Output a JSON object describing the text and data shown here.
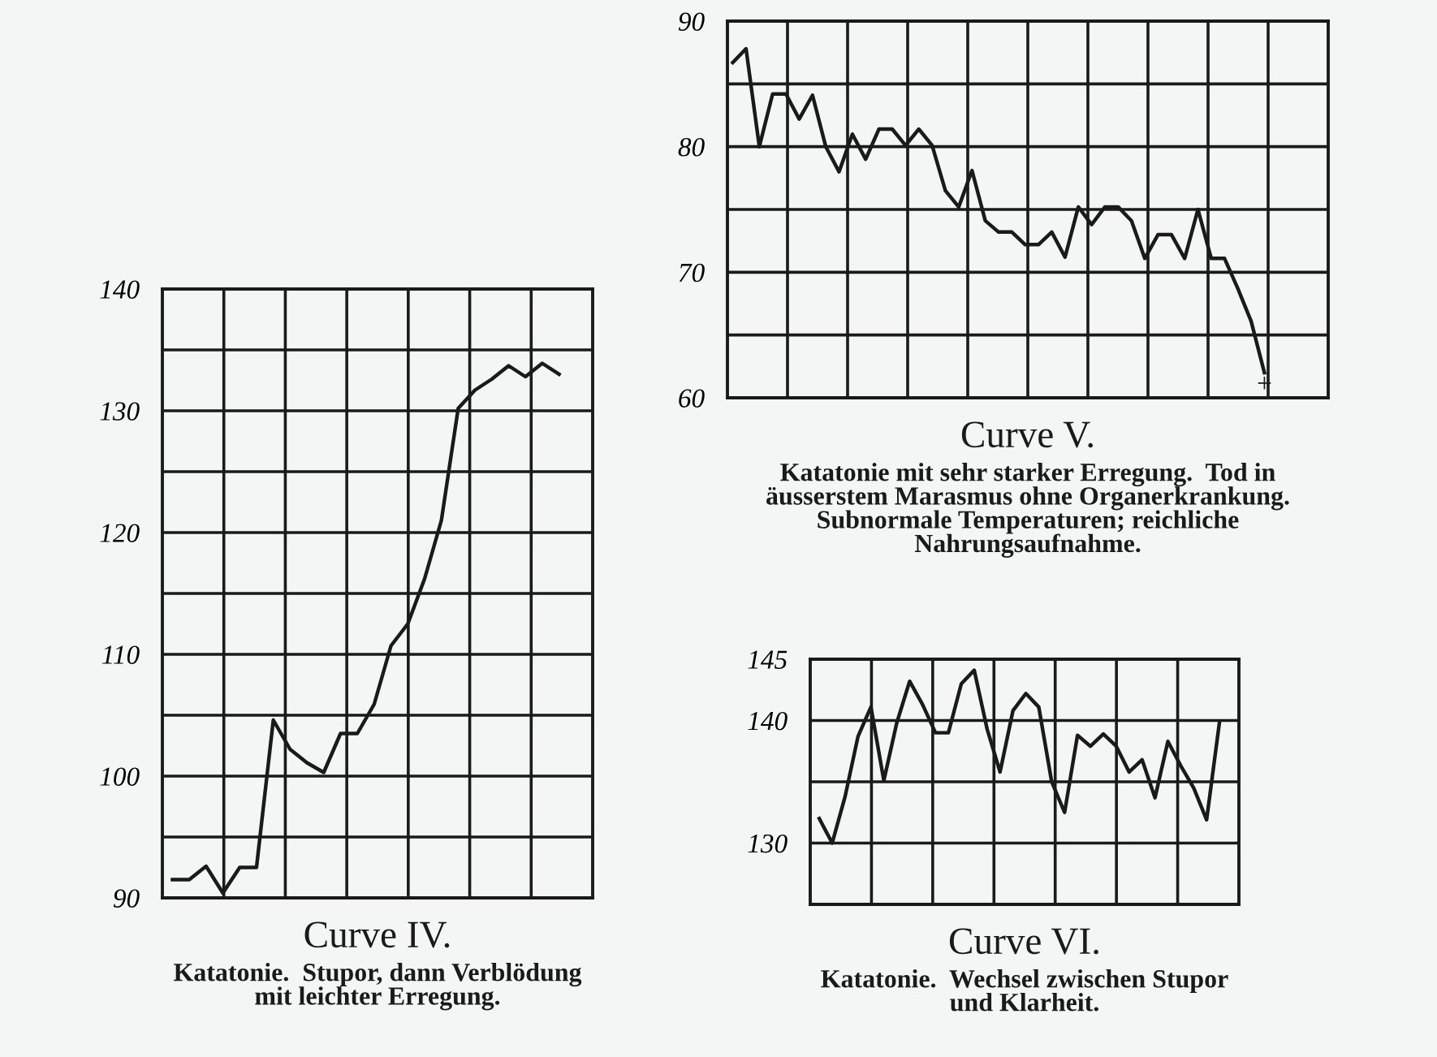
{
  "chart_data": [
    {
      "type": "line",
      "title": "Curve IV.",
      "subtitle": "Katatonie.  Stupor, dann Verblödung\nmit leichter Erregung.",
      "categories": [
        null,
        null,
        null,
        null,
        null,
        null,
        null,
        null,
        null,
        null,
        null,
        null,
        null,
        null,
        null,
        null,
        null,
        null,
        null,
        null,
        null,
        null,
        null,
        null
      ],
      "ylim": [
        90,
        140
      ],
      "yticks": [
        90,
        {
          "value": 95,
          "label": null
        },
        100,
        {
          "value": 105,
          "label": null
        },
        110,
        {
          "value": 115,
          "label": null
        },
        120,
        {
          "value": 125,
          "label": null
        },
        130,
        {
          "value": 135,
          "label": null
        },
        140
      ],
      "tick_labels": "y",
      "grid": true,
      "marker": "none",
      "line_style": "solid",
      "series": [
        {
          "color": "#1a1a1a",
          "values": [
            91.5,
            91.5,
            92.6,
            90.4,
            92.5,
            92.5,
            104.6,
            102.2,
            101.1,
            100.3,
            103.5,
            103.5,
            105.9,
            110.7,
            112.5,
            116.2,
            121.0,
            130.2,
            131.7,
            132.6,
            133.7,
            132.8,
            133.9,
            133.0
          ]
        }
      ]
    },
    {
      "type": "line",
      "title": "Curve V.",
      "subtitle": "Katatonie mit sehr starker Erregung.  Tod in\näusserstem Marasmus ohne Organerkrankung.\nSubnormale Temperaturen; reichliche\nNahrungsaufnahme.",
      "categories": [
        null,
        null,
        null,
        null,
        null,
        null,
        null,
        null,
        null,
        null,
        null,
        null,
        null,
        null,
        null,
        null,
        null,
        null,
        null,
        null,
        null,
        null,
        null,
        null,
        null,
        null,
        null,
        null,
        null,
        null,
        null,
        null,
        null,
        null,
        null,
        null,
        null,
        null,
        null,
        null,
        null
      ],
      "ylim": [
        60,
        90
      ],
      "yticks": [
        60,
        {
          "value": 65,
          "label": null
        },
        70,
        {
          "value": 75,
          "label": null
        },
        80,
        {
          "value": 85,
          "label": null
        },
        90
      ],
      "tick_labels": "y",
      "grid": true,
      "marker": "none",
      "line_style": "solid",
      "annotations": [
        "+"
      ],
      "series": [
        {
          "color": "#1a1a1a",
          "values": [
            86.7,
            87.8,
            80.0,
            84.2,
            84.2,
            82.2,
            84.1,
            80.0,
            78.0,
            81.0,
            79.0,
            81.4,
            81.4,
            80.1,
            81.4,
            80.1,
            76.5,
            75.2,
            78.1,
            74.1,
            73.2,
            73.2,
            72.2,
            72.2,
            73.2,
            71.2,
            75.2,
            73.8,
            75.2,
            75.2,
            74.1,
            71.1,
            73.0,
            73.0,
            71.1,
            75.0,
            71.1,
            71.1,
            68.7,
            66.1,
            62.0
          ]
        }
      ]
    },
    {
      "type": "line",
      "title": "Curve VI.",
      "subtitle": "Katatonie.  Wechsel zwischen Stupor\nund Klarheit.",
      "categories": [
        null,
        null,
        null,
        null,
        null,
        null,
        null,
        null,
        null,
        null,
        null,
        null,
        null,
        null,
        null,
        null,
        null,
        null,
        null,
        null,
        null,
        null,
        null,
        null,
        null,
        null,
        null,
        null,
        null,
        null,
        null,
        null
      ],
      "ylim": [
        125,
        145
      ],
      "yticks": [
        {
          "value": 125,
          "label": null
        },
        130,
        {
          "value": 135,
          "label": null
        },
        140,
        145
      ],
      "tick_labels": "y",
      "grid": true,
      "marker": "none",
      "line_style": "solid",
      "series": [
        {
          "color": "#1a1a1a",
          "values": [
            132.0,
            130.0,
            133.8,
            138.7,
            141.1,
            135.1,
            139.8,
            143.2,
            141.3,
            139.0,
            139.0,
            143.0,
            144.1,
            139.3,
            135.8,
            140.8,
            142.2,
            141.1,
            135.0,
            132.5,
            138.8,
            137.9,
            138.9,
            137.9,
            135.8,
            136.8,
            133.7,
            138.3,
            136.3,
            134.5,
            131.9,
            139.9
          ]
        }
      ]
    }
  ]
}
